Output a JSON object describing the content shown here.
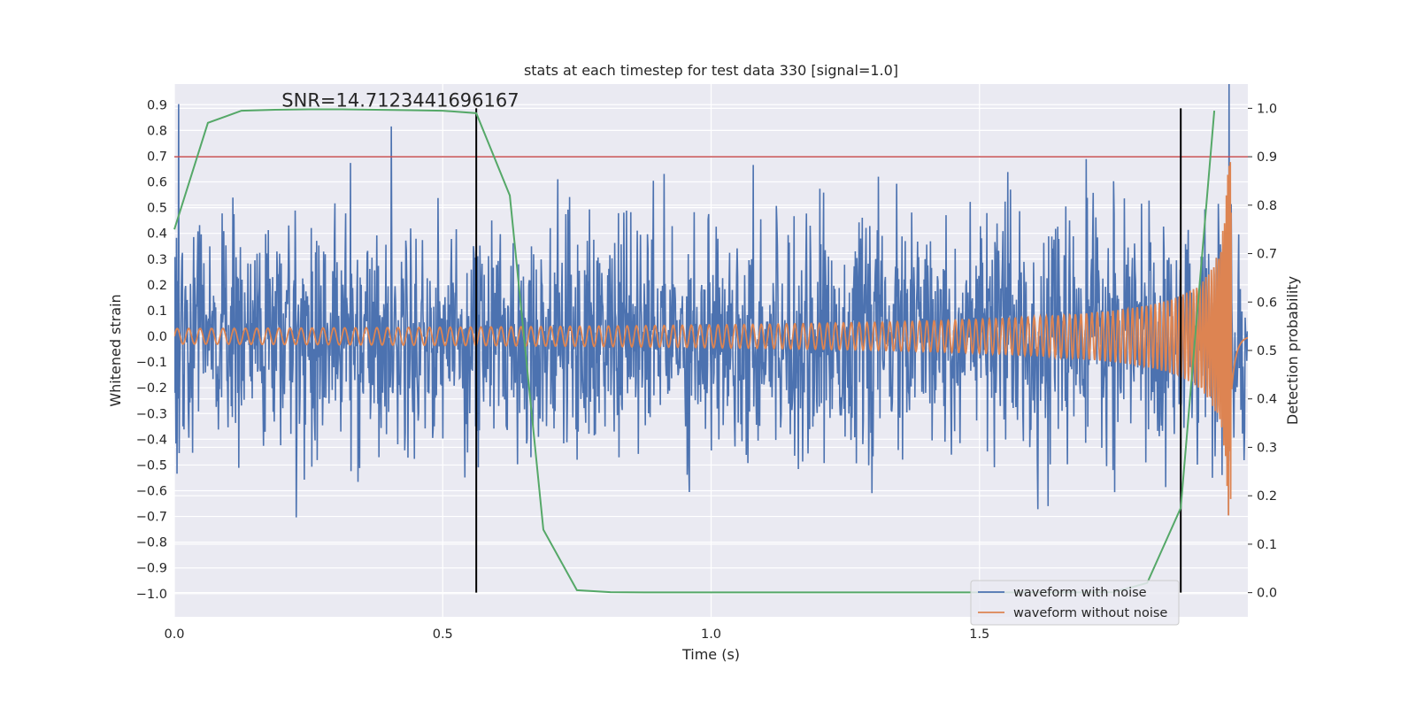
{
  "chart_data": {
    "type": "line",
    "title": "stats at each timestep for test data 330 [signal=1.0]",
    "xlabel": "Time (s)",
    "ylabel": "Whitened strain",
    "y2label": "Detection probability",
    "xlim": [
      0,
      2.0
    ],
    "ylim": [
      -1.09,
      0.98
    ],
    "y2lim": [
      -0.05,
      1.05
    ],
    "x_ticks": [
      "0.0",
      "0.5",
      "1.0",
      "1.5"
    ],
    "x_tick_values": [
      0,
      0.5,
      1.0,
      1.5
    ],
    "y_ticks": [
      "0.9",
      "0.8",
      "0.7",
      "0.6",
      "0.5",
      "0.4",
      "0.3",
      "0.2",
      "0.1",
      "0.0",
      "−0.1",
      "−0.2",
      "−0.3",
      "−0.4",
      "−0.5",
      "−0.6",
      "−0.7",
      "−0.8",
      "−0.9",
      "−1.0"
    ],
    "y_tick_values": [
      0.9,
      0.8,
      0.7,
      0.6,
      0.5,
      0.4,
      0.3,
      0.2,
      0.1,
      0.0,
      -0.1,
      -0.2,
      -0.3,
      -0.4,
      -0.5,
      -0.6,
      -0.7,
      -0.8,
      -0.9,
      -1.0
    ],
    "y2_ticks": [
      "1.0",
      "0.9",
      "0.8",
      "0.7",
      "0.6",
      "0.5",
      "0.4",
      "0.3",
      "0.2",
      "0.1",
      "0.0"
    ],
    "y2_tick_values": [
      1.0,
      0.9,
      0.8,
      0.7,
      0.6,
      0.5,
      0.4,
      0.3,
      0.2,
      0.1,
      0.0
    ],
    "annotation": "SNR=14.7123441696167",
    "annotation_x": 0.2,
    "annotation_y": 0.9,
    "threshold_y2": 0.9,
    "threshold_color": "#c44e52",
    "vertical_lines_x": [
      0.5625,
      1.875
    ],
    "vertical_line_y2_range": [
      0.0,
      1.0
    ],
    "legend": {
      "placement": "lower-right",
      "entries": [
        {
          "label": "waveform with noise",
          "color": "#4c72b0"
        },
        {
          "label": "waveform without noise",
          "color": "#dd8452"
        }
      ]
    },
    "series": [
      {
        "name": "waveform with noise",
        "color": "#4c72b0",
        "axis": "left",
        "generated": "random_noise",
        "sample_count": 2000,
        "x_range": [
          0,
          2.0
        ],
        "approx_std": 0.22
      },
      {
        "name": "waveform without noise",
        "color": "#dd8452",
        "axis": "left",
        "generated": "chirp",
        "x_range": [
          0,
          2.0
        ],
        "start_amplitude": 0.03,
        "peak_amplitude": 0.7,
        "merger_x": 1.97
      },
      {
        "name": "detection probability",
        "color": "#55a868",
        "axis": "right",
        "x": [
          0.0,
          0.0625,
          0.125,
          0.1875,
          0.25,
          0.3125,
          0.375,
          0.4375,
          0.5,
          0.5625,
          0.625,
          0.6875,
          0.75,
          0.8125,
          0.875,
          0.9375,
          1.0,
          1.0625,
          1.125,
          1.1875,
          1.25,
          1.3125,
          1.375,
          1.4375,
          1.5,
          1.5625,
          1.625,
          1.6875,
          1.75,
          1.8125,
          1.875,
          1.9375
        ],
        "values": [
          0.75,
          0.97,
          0.995,
          0.997,
          0.998,
          0.998,
          0.997,
          0.996,
          0.995,
          0.99,
          0.82,
          0.13,
          0.005,
          0.001,
          0.0005,
          0.0005,
          0.0005,
          0.0005,
          0.0005,
          0.0005,
          0.0005,
          0.0005,
          0.0005,
          0.0005,
          0.0005,
          0.0005,
          0.0005,
          0.0005,
          0.001,
          0.02,
          0.175,
          0.995
        ]
      }
    ]
  }
}
